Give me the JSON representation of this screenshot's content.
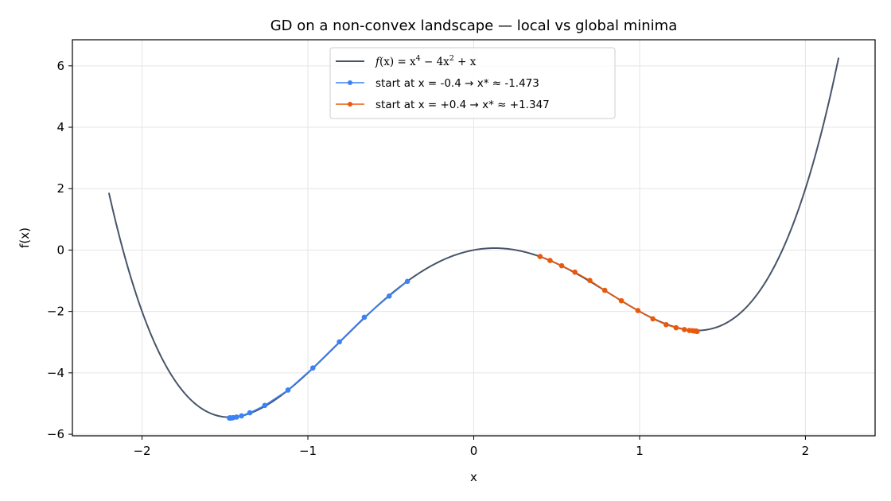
{
  "chart_data": {
    "type": "line",
    "title": "GD on a non-convex landscape — local vs global minima",
    "xlabel": "x",
    "ylabel": "f(x)",
    "xlim": [
      -2.42,
      2.42
    ],
    "ylim": [
      -6.05,
      6.85
    ],
    "xticks": [
      -2,
      -1,
      0,
      1,
      2
    ],
    "yticks": [
      -6,
      -4,
      -2,
      0,
      2,
      4,
      6
    ],
    "xtick_labels": [
      "−2",
      "−1",
      "0",
      "1",
      "2"
    ],
    "ytick_labels": [
      "−6",
      "−4",
      "−2",
      "0",
      "2",
      "4",
      "6"
    ],
    "grid": true,
    "legend_position": "upper-center",
    "curve": {
      "name": "f(x) = x⁴ − 4x² + x",
      "name_parts": {
        "a": "f",
        "b": "(x) = x",
        "c": "4",
        "d": " − 4x",
        "e": "2",
        "f": " + x"
      },
      "x_range": [
        -2.2,
        2.2
      ],
      "color": "#475569"
    },
    "series": [
      {
        "name": "start at x = -0.4  →  x* ≈ -1.473",
        "color": "#3b82f6",
        "x": [
          -0.4,
          -0.51,
          -0.66,
          -0.81,
          -0.97,
          -1.12,
          -1.26,
          -1.35,
          -1.4,
          -1.43,
          -1.45,
          -1.46,
          -1.467,
          -1.47,
          -1.472,
          -1.473
        ],
        "y": [
          -1.02,
          -1.5,
          -2.19,
          -2.99,
          -3.84,
          -4.56,
          -5.06,
          -5.3,
          -5.4,
          -5.44,
          -5.46,
          -5.47,
          -5.47,
          -5.47,
          -5.47,
          -5.47
        ]
      },
      {
        "name": "start at x = +0.4  →  x* ≈ +1.347",
        "color": "#ea580c",
        "x": [
          0.4,
          0.46,
          0.53,
          0.61,
          0.7,
          0.79,
          0.89,
          0.99,
          1.08,
          1.16,
          1.22,
          1.27,
          1.3,
          1.32,
          1.335,
          1.342,
          1.347
        ],
        "y": [
          -0.21,
          -0.34,
          -0.51,
          -0.72,
          -0.99,
          -1.31,
          -1.65,
          -1.97,
          -2.24,
          -2.43,
          -2.53,
          -2.59,
          -2.62,
          -2.63,
          -2.64,
          -2.64,
          -2.65
        ]
      }
    ]
  }
}
